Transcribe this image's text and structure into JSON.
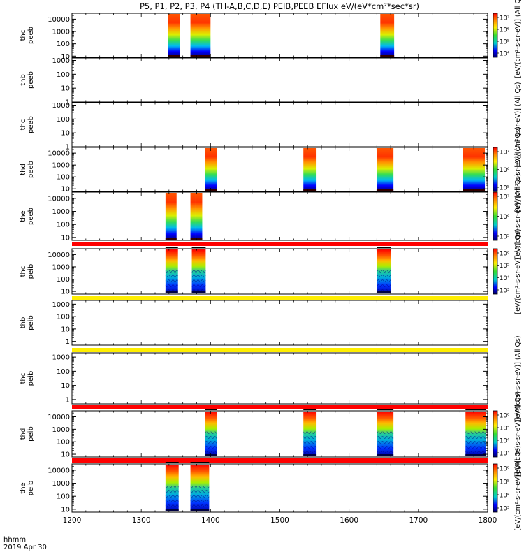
{
  "chart_data": {
    "type": "heatmap",
    "title": "P5, P1, P2, P3, P4 (TH-A,B,C,D,E) PEIB,PEEB EFlux eV/(eV*cm²*sec*sr)",
    "x": {
      "range": [
        1200,
        1800
      ],
      "ticks": [
        1200,
        1300,
        1400,
        1500,
        1600,
        1700,
        1800
      ],
      "label_line1": "hhmm",
      "label_line2": "2019 Apr 30"
    },
    "colorbar_colors": [
      "#ff0000",
      "#ff8800",
      "#ffee00",
      "#33dd33",
      "#00cccc",
      "#0000ff",
      "#000066"
    ],
    "panels": [
      {
        "name": "thc\npeeb",
        "ylabel": [
          "thc",
          "peeb"
        ],
        "yrange": [
          8,
          30000
        ],
        "yticks": [
          10,
          100,
          1000,
          10000
        ],
        "yticklabels": [
          "10",
          "100",
          "1000",
          "10000"
        ],
        "blocks": [
          [
            1339,
            1356
          ],
          [
            1371,
            1382
          ],
          [
            1382,
            1400
          ],
          [
            1645,
            1665
          ]
        ],
        "kind": "electron",
        "colorbar": {
          "ticks": [
            "10⁴",
            "10⁵",
            "10⁶",
            "10⁷"
          ],
          "label": "[eV/(cm²-s-sr-eV)] (All Qs)"
        }
      },
      {
        "name": "thb\npeeb",
        "ylabel": [
          "thb",
          "peeb"
        ],
        "yrange": [
          1,
          1500
        ],
        "yticks": [
          1,
          10,
          100,
          1000
        ],
        "yticklabels": [
          "1",
          "10",
          "100",
          "1000"
        ],
        "blocks": [],
        "kind": "empty",
        "colorbar": null
      },
      {
        "name": "thc\npeeb",
        "ylabel": [
          "thc",
          "peeb"
        ],
        "yrange": [
          1,
          1500
        ],
        "yticks": [
          1,
          10,
          100,
          1000
        ],
        "yticklabels": [
          "1",
          "10",
          "100",
          "1000"
        ],
        "blocks": [],
        "kind": "empty",
        "colorbar": {
          "ticks": [],
          "label": "[eV/(cm²-s-sr-eV)] (All Qs)"
        }
      },
      {
        "name": "thd\npeeb",
        "ylabel": [
          "thd",
          "peeb"
        ],
        "yrange": [
          6,
          30000
        ],
        "yticks": [
          10,
          100,
          1000,
          10000
        ],
        "yticklabels": [
          "10",
          "100",
          "1000",
          "10000"
        ],
        "blocks": [
          [
            1392,
            1409
          ],
          [
            1534,
            1553
          ],
          [
            1640,
            1664
          ],
          [
            1764,
            1787
          ],
          [
            1787,
            1796
          ]
        ],
        "kind": "electron",
        "colorbar": {
          "ticks": [
            "10⁵",
            "10⁶",
            "10⁷"
          ],
          "label": "[eV/(cm²-s-sr-eV)] (All Qs)"
        }
      },
      {
        "name": "the\npeeb",
        "ylabel": [
          "the",
          "peeb"
        ],
        "yrange": [
          6,
          30000
        ],
        "yticks": [
          10,
          100,
          1000,
          10000
        ],
        "yticklabels": [
          "10",
          "100",
          "1000",
          "10000"
        ],
        "blocks": [
          [
            1335,
            1351
          ],
          [
            1371,
            1378
          ],
          [
            1378,
            1388
          ]
        ],
        "kind": "electron",
        "colorbar": {
          "ticks": [
            "10⁵",
            "10⁶",
            "10⁷"
          ],
          "label": "[eV/(cm²-s-sr-eV)] (All Qs)"
        }
      },
      {
        "name": "thc\npeib",
        "ylabel": [
          "thc",
          "peib"
        ],
        "yrange": [
          6,
          30000
        ],
        "yticks": [
          10,
          100,
          1000,
          10000
        ],
        "yticklabels": [
          "10",
          "100",
          "1000",
          "10000"
        ],
        "blocks": [
          [
            1335,
            1353
          ],
          [
            1373,
            1382
          ],
          [
            1382,
            1393
          ],
          [
            1640,
            1660
          ]
        ],
        "kind": "ion",
        "bar": "#ff0000",
        "colorbar": {
          "ticks": [
            "10³",
            "10⁴",
            "10⁵",
            "10⁶"
          ],
          "label": "[eV/(cm²-s-sr-eV)] (All Qs)"
        }
      },
      {
        "name": "thb\npeib",
        "ylabel": [
          "thb",
          "peib"
        ],
        "yrange": [
          0.5,
          2000
        ],
        "yticks": [
          1,
          10,
          100,
          1000
        ],
        "yticklabels": [
          "1",
          "10",
          "100",
          "1000"
        ],
        "blocks": [],
        "kind": "empty",
        "bar": "#ffee00",
        "colorbar": null
      },
      {
        "name": "thc\npeib",
        "ylabel": [
          "thc",
          "peib"
        ],
        "yrange": [
          0.5,
          2000
        ],
        "yticks": [
          1,
          10,
          100,
          1000
        ],
        "yticklabels": [
          "1",
          "10",
          "100",
          "1000"
        ],
        "blocks": [],
        "kind": "empty",
        "bar": "#ffee00",
        "colorbar": {
          "ticks": [],
          "label": "[eV/(cm²-s-sr-eV)] (All Qs)"
        }
      },
      {
        "name": "thd\npeib",
        "ylabel": [
          "thd",
          "peib"
        ],
        "yrange": [
          6,
          30000
        ],
        "yticks": [
          10,
          100,
          1000,
          10000
        ],
        "yticklabels": [
          "10",
          "100",
          "1000",
          "10000"
        ],
        "blocks": [
          [
            1392,
            1409
          ],
          [
            1534,
            1553
          ],
          [
            1640,
            1664
          ],
          [
            1768,
            1787
          ],
          [
            1787,
            1798
          ]
        ],
        "kind": "ion",
        "bar": "#ff0000",
        "colorbar": {
          "ticks": [
            "10³",
            "10⁴",
            "10⁵",
            "10⁶"
          ],
          "label": "[eV/(cm²-s-sr-eV)] (All Qs)"
        }
      },
      {
        "name": "the\npeib",
        "ylabel": [
          "the",
          "peib"
        ],
        "yrange": [
          6,
          30000
        ],
        "yticks": [
          10,
          100,
          1000,
          10000
        ],
        "yticklabels": [
          "10",
          "100",
          "1000",
          "10000"
        ],
        "blocks": [
          [
            1335,
            1354
          ],
          [
            1371,
            1380
          ],
          [
            1380,
            1398
          ]
        ],
        "kind": "ion",
        "bar": "#ff0000",
        "colorbar": {
          "ticks": [
            "10³",
            "10⁴",
            "10⁵",
            "10⁶"
          ],
          "label": "[eV/(cm²-s-sr-eV)] (All Qs)"
        }
      }
    ]
  }
}
